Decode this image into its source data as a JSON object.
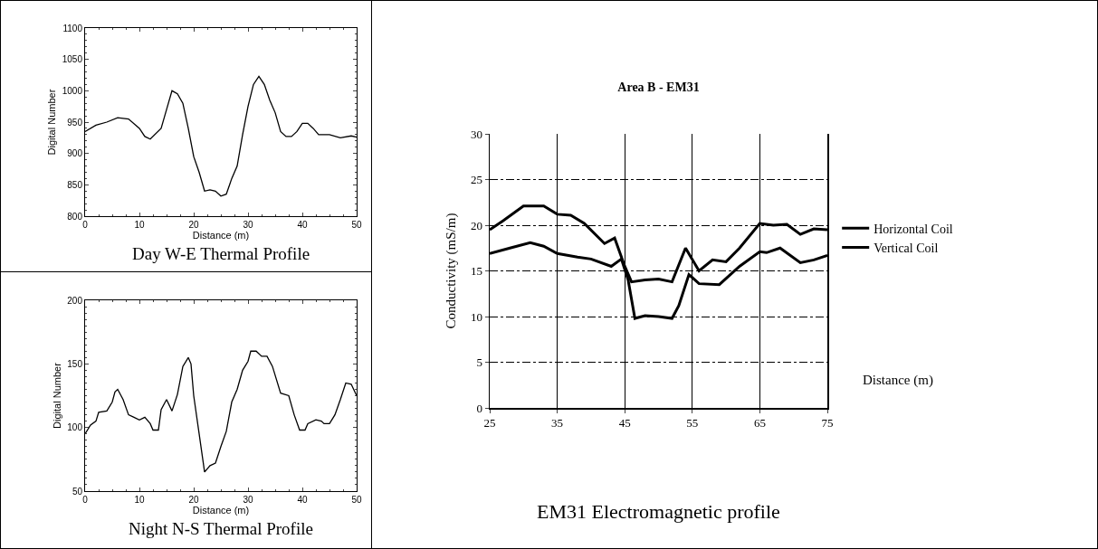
{
  "chart_data": [
    {
      "type": "line",
      "xlabel": "Distance (m)",
      "ylabel": "Digital Number",
      "annotations": [
        "Day W-E Thermal Profile"
      ],
      "xlim": [
        0,
        50
      ],
      "ylim": [
        800,
        1100
      ],
      "xticks": [
        0,
        10,
        20,
        30,
        40,
        50
      ],
      "yticks": [
        800,
        850,
        900,
        950,
        1000,
        1050,
        1100
      ],
      "marker": "none",
      "line_style": "solid",
      "series": [
        {
          "color": "#000000",
          "x": [
            0,
            2,
            4,
            6,
            8,
            10,
            11,
            12,
            14,
            15,
            16,
            17,
            18,
            19,
            20,
            21,
            22,
            23,
            24,
            25,
            26,
            27,
            28,
            29,
            30,
            31,
            32,
            33,
            34,
            35,
            36,
            37,
            38,
            39,
            40,
            41,
            42,
            43,
            45,
            47,
            49,
            50
          ],
          "values": [
            935,
            945,
            950,
            957,
            955,
            940,
            927,
            923,
            940,
            970,
            1000,
            995,
            980,
            940,
            895,
            870,
            840,
            842,
            840,
            832,
            835,
            860,
            880,
            930,
            975,
            1010,
            1023,
            1010,
            985,
            965,
            935,
            927,
            927,
            935,
            948,
            948,
            940,
            930,
            930,
            925,
            928,
            926
          ]
        }
      ]
    },
    {
      "type": "line",
      "xlabel": "Distance (m)",
      "ylabel": "Digital Number",
      "annotations": [
        "Night N-S Thermal Profile"
      ],
      "xlim": [
        0,
        50
      ],
      "ylim": [
        50,
        200
      ],
      "xticks": [
        0,
        10,
        20,
        30,
        40,
        50
      ],
      "yticks": [
        50,
        100,
        150,
        200
      ],
      "marker": "none",
      "line_style": "solid",
      "series": [
        {
          "color": "#000000",
          "x": [
            0,
            1,
            2,
            2.5,
            4,
            5,
            5.5,
            6,
            7,
            8,
            9,
            10,
            11,
            12,
            12.5,
            13.5,
            14,
            15,
            16,
            17,
            18,
            19,
            19.5,
            20,
            21,
            22,
            23,
            24,
            25,
            26,
            27,
            28,
            29,
            30,
            30.5,
            31.5,
            32.5,
            33.5,
            34.5,
            36,
            37.5,
            38.5,
            39.5,
            40.5,
            41,
            42.5,
            43.5,
            44,
            45,
            46,
            47,
            48,
            49,
            50
          ],
          "values": [
            95,
            102,
            105,
            112,
            113,
            120,
            128,
            130,
            122,
            110,
            108,
            106,
            108,
            103,
            98,
            98,
            114,
            122,
            113,
            126,
            148,
            155,
            150,
            125,
            95,
            65,
            70,
            72,
            85,
            97,
            120,
            130,
            145,
            152,
            160,
            160,
            156,
            156,
            148,
            127,
            125,
            110,
            98,
            98,
            103,
            106,
            105,
            103,
            103,
            110,
            122,
            135,
            134,
            125
          ]
        }
      ]
    },
    {
      "type": "line",
      "title": "Area B - EM31",
      "xlabel": "Distance (m)",
      "ylabel": "Conductivity (mS/m)",
      "annotations": [
        "EM31 Electromagnetic profile"
      ],
      "xlim": [
        25,
        75
      ],
      "ylim": [
        0,
        30
      ],
      "xticks": [
        25,
        35,
        45,
        55,
        65,
        75
      ],
      "yticks": [
        0,
        5,
        10,
        15,
        20,
        25,
        30
      ],
      "grid": true,
      "legend": "right",
      "marker": "none",
      "line_style": "solid",
      "series": [
        {
          "name": "Horizontal Coil",
          "color": "#000000",
          "x": [
            25,
            27,
            30,
            33,
            35,
            37,
            39,
            42,
            43.5,
            45,
            46,
            48,
            50,
            52,
            54,
            56,
            58,
            60,
            62,
            65,
            67,
            69,
            71,
            73,
            75
          ],
          "values": [
            19.5,
            20.5,
            22.1,
            22.1,
            21.2,
            21.1,
            20.2,
            18,
            18.6,
            15.5,
            13.8,
            14,
            14.1,
            13.8,
            17.5,
            15,
            16.2,
            16,
            17.5,
            20.2,
            20,
            20.1,
            19,
            19.6,
            19.5
          ]
        },
        {
          "name": "Vertical Coil",
          "color": "#000000",
          "x": [
            25,
            28,
            31,
            33,
            35,
            38,
            40,
            43,
            44.5,
            45.5,
            46.5,
            48,
            50,
            52,
            53,
            54.5,
            56,
            59,
            62,
            65,
            66,
            68,
            71,
            73,
            75
          ],
          "values": [
            16.9,
            17.5,
            18.1,
            17.7,
            16.9,
            16.5,
            16.3,
            15.5,
            16.3,
            14,
            9.8,
            10.1,
            10,
            9.8,
            11.2,
            14.6,
            13.6,
            13.5,
            15.5,
            17.1,
            17,
            17.5,
            15.9,
            16.2,
            16.7
          ]
        }
      ]
    }
  ]
}
